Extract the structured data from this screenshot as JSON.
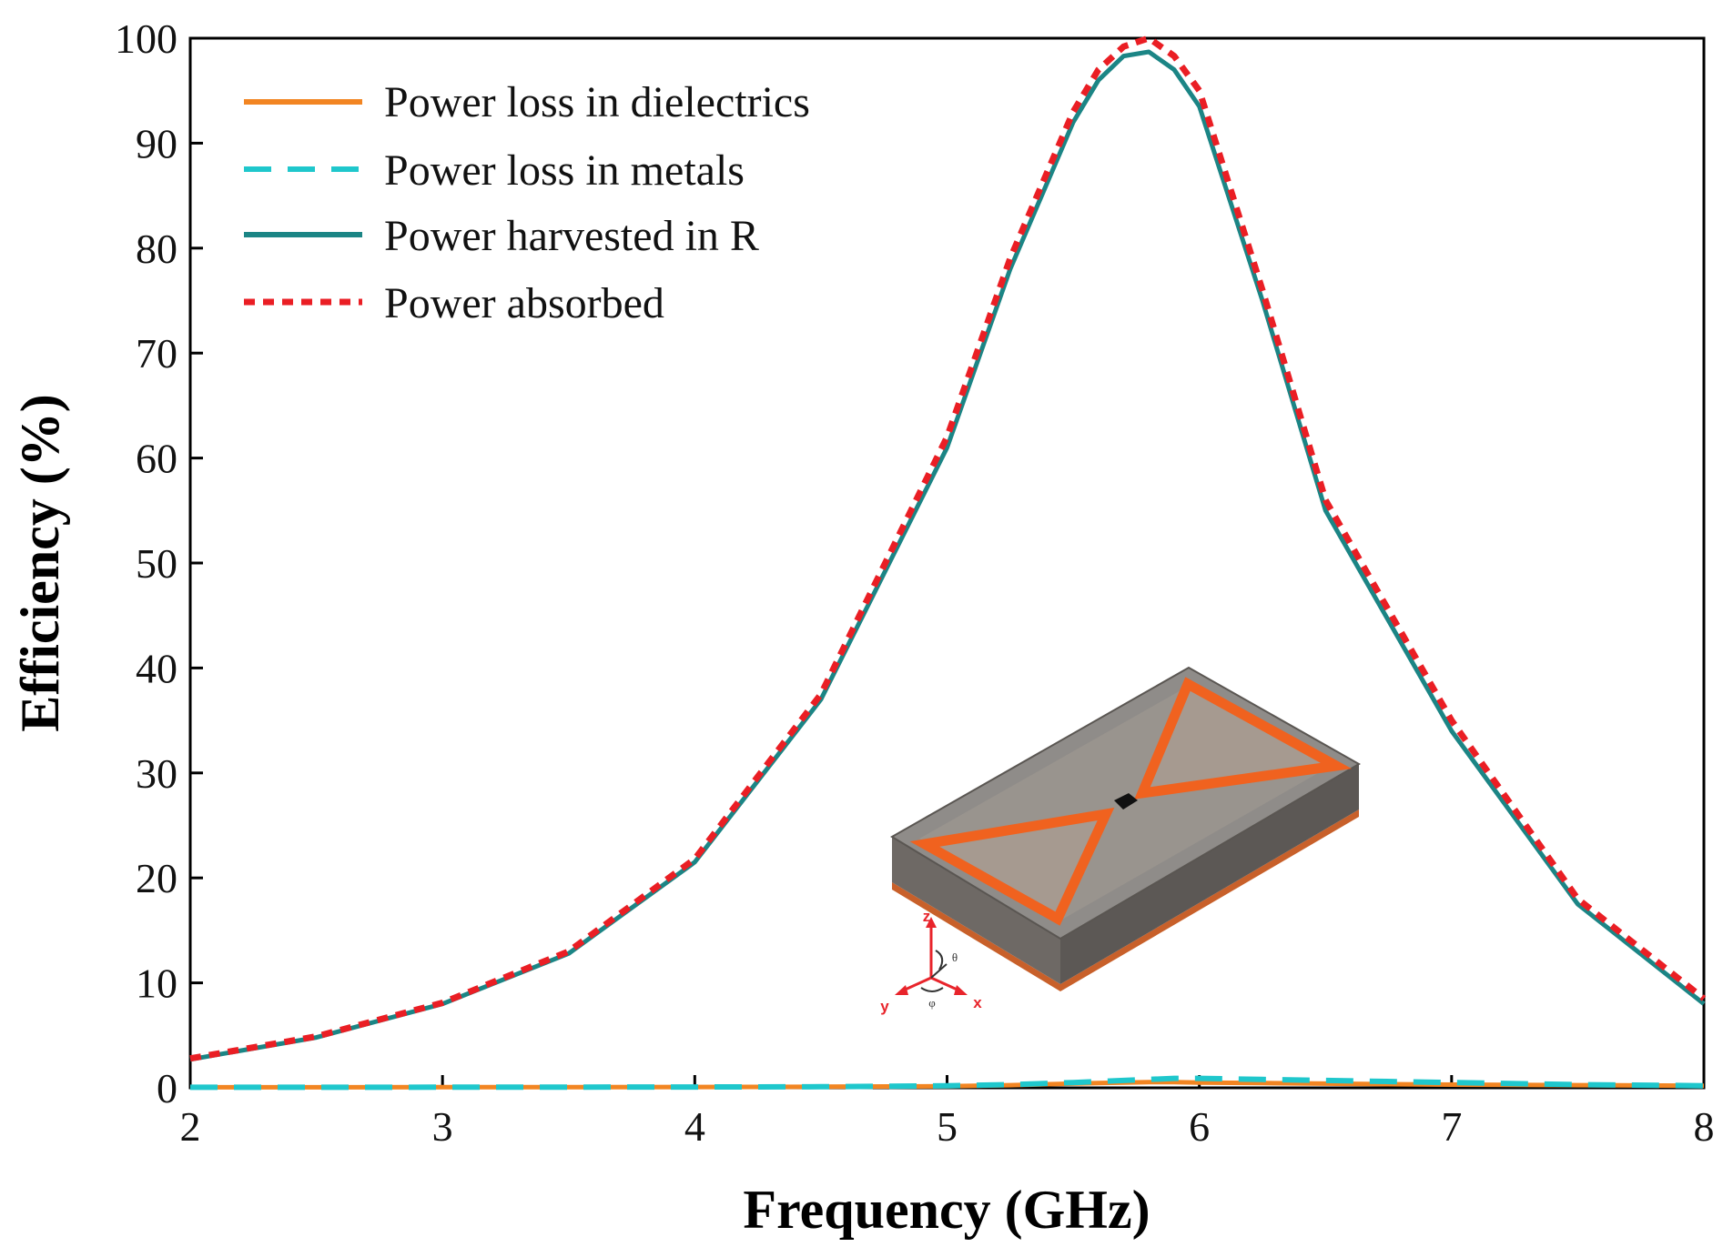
{
  "chart_data": {
    "type": "line",
    "title": "",
    "xlabel": "Frequency (GHz)",
    "ylabel": "Efficiency (%)",
    "xlim": [
      2,
      8
    ],
    "ylim": [
      0,
      100
    ],
    "xticks": [
      2,
      3,
      4,
      5,
      6,
      7,
      8
    ],
    "yticks": [
      0,
      10,
      20,
      30,
      40,
      50,
      60,
      70,
      80,
      90,
      100
    ],
    "grid": false,
    "legend_position": "top-left",
    "x": [
      2,
      2.5,
      3,
      3.5,
      4,
      4.5,
      5,
      5.25,
      5.5,
      5.6,
      5.7,
      5.8,
      5.9,
      6,
      6.25,
      6.5,
      7,
      7.5,
      8
    ],
    "series": [
      {
        "name": "Power loss in dielectrics",
        "color": "#f28522",
        "style": "solid",
        "values": [
          0.05,
          0.05,
          0.06,
          0.07,
          0.08,
          0.1,
          0.15,
          0.25,
          0.4,
          0.45,
          0.5,
          0.55,
          0.55,
          0.5,
          0.45,
          0.4,
          0.3,
          0.25,
          0.2
        ]
      },
      {
        "name": "Power loss in metals",
        "color": "#1fc7cc",
        "style": "dashed",
        "values": [
          0.05,
          0.05,
          0.06,
          0.07,
          0.08,
          0.1,
          0.2,
          0.3,
          0.5,
          0.6,
          0.7,
          0.8,
          0.9,
          0.9,
          0.8,
          0.7,
          0.5,
          0.3,
          0.2
        ]
      },
      {
        "name": "Power harvested in R",
        "color": "#1b8585",
        "style": "solid",
        "values": [
          2.7,
          4.8,
          8.0,
          12.8,
          21.5,
          37.0,
          61.0,
          78.0,
          92.0,
          96.0,
          98.3,
          98.7,
          97.0,
          93.5,
          75.0,
          55.0,
          34.0,
          17.5,
          8.0
        ]
      },
      {
        "name": "Power absorbed",
        "color": "#ea1e24",
        "style": "dotted",
        "values": [
          2.8,
          4.9,
          8.1,
          13.0,
          21.8,
          37.5,
          62.0,
          79.0,
          93.0,
          97.0,
          99.2,
          100.0,
          98.3,
          95.0,
          76.0,
          56.0,
          35.0,
          18.0,
          8.5
        ]
      }
    ],
    "inset": {
      "description_icon": "bowtie-rectenna-3d-icon",
      "axis_labels": [
        "z",
        "y",
        "x"
      ],
      "angle_labels": [
        "θ",
        "φ"
      ]
    }
  }
}
